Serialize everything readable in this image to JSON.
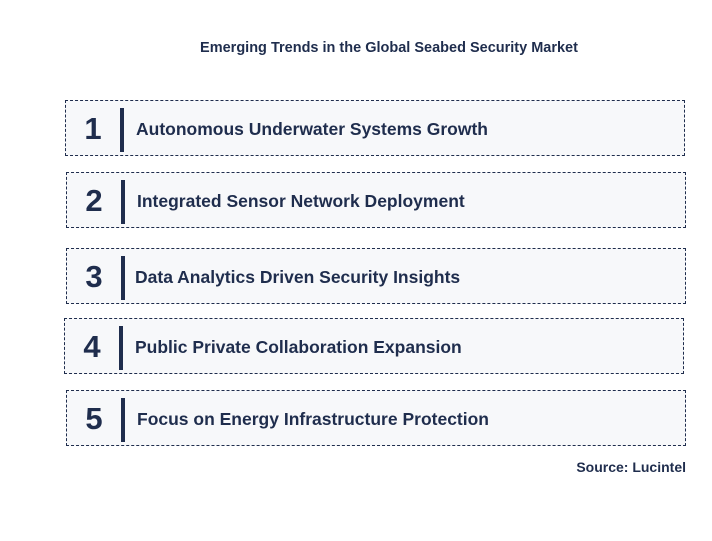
{
  "title": "Emerging Trends in the Global Seabed Security Market",
  "trends": [
    {
      "number": "1",
      "text": "Autonomous Underwater Systems Growth"
    },
    {
      "number": "2",
      "text": "Integrated Sensor Network Deployment"
    },
    {
      "number": "3",
      "text": "Data Analytics Driven Security Insights"
    },
    {
      "number": "4",
      "text": "Public Private Collaboration Expansion"
    },
    {
      "number": "5",
      "text": "Focus on Energy Infrastructure Protection"
    }
  ],
  "source": "Source: Lucintel",
  "colors": {
    "text": "#1f2d4d",
    "border": "#1f2d4d",
    "box_background": "#f7f8fa"
  }
}
